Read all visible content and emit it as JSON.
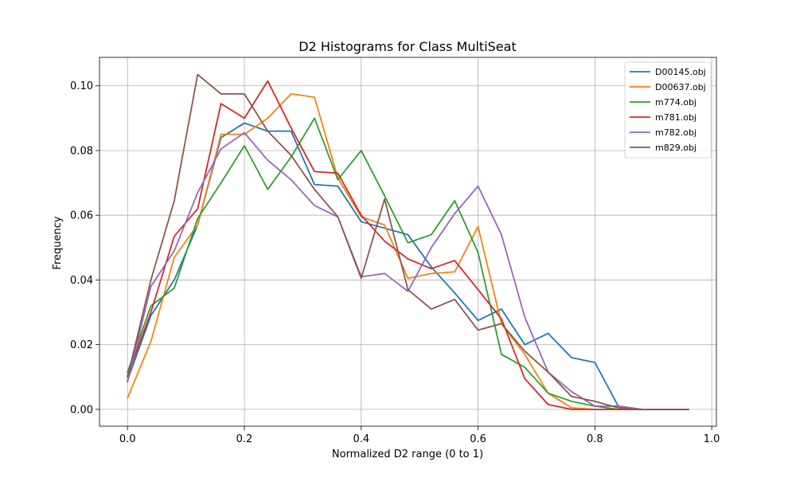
{
  "chart_data": {
    "type": "line",
    "title": "D2 Histograms for Class MultiSeat",
    "xlabel": "Normalized D2 range (0 to 1)",
    "ylabel": "Frequency",
    "xlim": [
      -0.048,
      1.008
    ],
    "ylim": [
      -0.0052,
      0.1088
    ],
    "xticks": [
      0.0,
      0.2,
      0.4,
      0.6,
      0.8,
      1.0
    ],
    "xtick_labels": [
      "0.0",
      "0.2",
      "0.4",
      "0.6",
      "0.8",
      "1.0"
    ],
    "yticks": [
      0.0,
      0.02,
      0.04,
      0.06,
      0.08,
      0.1
    ],
    "ytick_labels": [
      "0.00",
      "0.02",
      "0.04",
      "0.06",
      "0.08",
      "0.10"
    ],
    "grid": true,
    "legend_position": "top-right",
    "x": [
      0.0,
      0.04,
      0.08,
      0.12,
      0.16,
      0.2,
      0.24,
      0.28,
      0.32,
      0.36,
      0.4,
      0.44,
      0.48,
      0.52,
      0.56,
      0.6,
      0.64,
      0.68,
      0.72,
      0.76,
      0.8,
      0.84,
      0.88,
      0.92,
      0.96
    ],
    "series": [
      {
        "name": "D00145.obj",
        "color": "#1f77b4",
        "values": [
          0.009,
          0.029,
          0.04,
          0.057,
          0.084,
          0.0885,
          0.086,
          0.086,
          0.0695,
          0.069,
          0.058,
          0.056,
          0.054,
          0.044,
          0.036,
          0.0275,
          0.031,
          0.02,
          0.0235,
          0.016,
          0.0145,
          0.001,
          0.0,
          0.0,
          0.0
        ]
      },
      {
        "name": "D00637.obj",
        "color": "#ff7f0e",
        "values": [
          0.0035,
          0.021,
          0.047,
          0.057,
          0.085,
          0.085,
          0.09,
          0.0975,
          0.0965,
          0.0715,
          0.0595,
          0.057,
          0.0405,
          0.042,
          0.0425,
          0.0565,
          0.0265,
          0.017,
          0.005,
          0.0005,
          0.0,
          0.0,
          0.0,
          0.0,
          0.0
        ]
      },
      {
        "name": "m774.obj",
        "color": "#2ca02c",
        "values": [
          0.0115,
          0.032,
          0.0375,
          0.059,
          0.07,
          0.0815,
          0.068,
          0.078,
          0.09,
          0.071,
          0.08,
          0.066,
          0.0515,
          0.054,
          0.0645,
          0.0485,
          0.017,
          0.013,
          0.005,
          0.0025,
          0.001,
          0.0,
          0.0,
          0.0,
          0.0
        ]
      },
      {
        "name": "m781.obj",
        "color": "#d62728",
        "values": [
          0.0105,
          0.03,
          0.0535,
          0.062,
          0.0945,
          0.09,
          0.1015,
          0.087,
          0.0735,
          0.073,
          0.06,
          0.052,
          0.0465,
          0.0435,
          0.046,
          0.037,
          0.028,
          0.0095,
          0.0015,
          0.0,
          0.0,
          0.0,
          0.0,
          0.0,
          0.0
        ]
      },
      {
        "name": "m782.obj",
        "color": "#9467bd",
        "values": [
          0.0085,
          0.038,
          0.049,
          0.067,
          0.0805,
          0.0855,
          0.077,
          0.071,
          0.063,
          0.0595,
          0.041,
          0.042,
          0.0365,
          0.05,
          0.0605,
          0.069,
          0.054,
          0.0285,
          0.0115,
          0.0055,
          0.001,
          0.001,
          0.0,
          0.0,
          0.0
        ]
      },
      {
        "name": "m829.obj",
        "color": "#8c564b",
        "values": [
          0.01,
          0.04,
          0.0645,
          0.1035,
          0.0975,
          0.0975,
          0.086,
          0.0785,
          0.068,
          0.0595,
          0.0405,
          0.065,
          0.037,
          0.031,
          0.034,
          0.0245,
          0.0265,
          0.018,
          0.0115,
          0.004,
          0.0025,
          0.0005,
          0.0,
          0.0,
          0.0
        ]
      }
    ]
  }
}
